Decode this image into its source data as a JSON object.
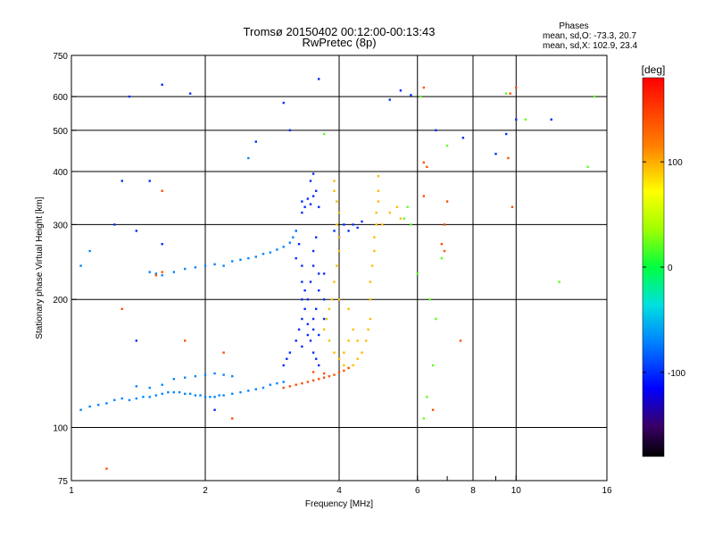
{
  "chart_data": {
    "type": "scatter",
    "title": "Tromsø 20150402 00:12:00-00:13:43",
    "subtitle": "RwPretec (8p)",
    "xlabel": "Frequency [MHz]",
    "ylabel": "Stationary phase Virtual Height [km]",
    "x_scale": "log",
    "y_scale": "log",
    "xlim": [
      1,
      16
    ],
    "ylim": [
      75,
      750
    ],
    "grid": true,
    "x_ticks": [
      1,
      2,
      4,
      6,
      8,
      10,
      16
    ],
    "x_tick_labels": [
      "1",
      "2",
      "4",
      "6",
      "8",
      "10",
      "16"
    ],
    "x_minor_ticks": [
      7,
      9
    ],
    "x_grid_lines": [
      2,
      4,
      6,
      8,
      10
    ],
    "y_ticks": [
      75,
      100,
      200,
      300,
      400,
      500,
      600,
      750
    ],
    "y_tick_labels": [
      "75",
      "100",
      "200",
      "300",
      "400",
      "500",
      "600",
      "750"
    ],
    "y_grid_lines": [
      100,
      200,
      300,
      400,
      500,
      600
    ],
    "stats": {
      "heading": "Phases",
      "line_o": "mean, sd,O: -73.3, 20.7",
      "line_x": "mean, sd,X: 102.9, 23.4"
    },
    "colorbar": {
      "label": "[deg]",
      "range": [
        -180,
        180
      ],
      "ticks": [
        100,
        0,
        -100
      ],
      "tick_labels": [
        "100",
        "0",
        "-100"
      ],
      "colormap": "rainbow"
    },
    "series": [
      {
        "mode": "O",
        "phase_deg": -100,
        "points": [
          [
            3.3,
            340
          ],
          [
            3.35,
            330
          ],
          [
            3.4,
            345
          ],
          [
            3.45,
            335
          ],
          [
            3.5,
            350
          ],
          [
            3.55,
            360
          ],
          [
            3.45,
            380
          ],
          [
            3.5,
            395
          ],
          [
            3.3,
            320
          ],
          [
            3.6,
            330
          ],
          [
            3.2,
            290
          ],
          [
            3.25,
            270
          ],
          [
            3.2,
            250
          ],
          [
            3.3,
            240
          ],
          [
            3.3,
            220
          ],
          [
            3.35,
            210
          ],
          [
            3.3,
            200
          ],
          [
            3.35,
            190
          ],
          [
            3.3,
            180
          ],
          [
            3.25,
            170
          ],
          [
            3.2,
            160
          ],
          [
            3.1,
            150
          ],
          [
            3.05,
            145
          ],
          [
            3.0,
            140
          ],
          [
            3.4,
            200
          ],
          [
            3.45,
            220
          ],
          [
            3.5,
            240
          ],
          [
            3.5,
            260
          ],
          [
            3.55,
            280
          ],
          [
            3.6,
            230
          ],
          [
            3.6,
            210
          ],
          [
            3.55,
            190
          ],
          [
            3.5,
            180
          ],
          [
            3.5,
            170
          ],
          [
            3.45,
            160
          ],
          [
            3.5,
            150
          ],
          [
            3.55,
            145
          ],
          [
            3.6,
            140
          ],
          [
            3.7,
            180
          ],
          [
            3.7,
            200
          ],
          [
            3.7,
            230
          ],
          [
            3.4,
            175
          ],
          [
            3.4,
            165
          ],
          [
            3.6,
            165
          ],
          [
            3.3,
            155
          ],
          [
            4.0,
            280
          ],
          [
            4.1,
            300
          ],
          [
            4.2,
            290
          ],
          [
            4.3,
            300
          ],
          [
            4.4,
            295
          ],
          [
            4.5,
            305
          ],
          [
            3.9,
            290
          ],
          [
            1.35,
            600
          ],
          [
            1.6,
            640
          ],
          [
            1.85,
            610
          ],
          [
            3.1,
            500
          ],
          [
            3.6,
            660
          ],
          [
            5.2,
            590
          ],
          [
            5.5,
            620
          ],
          [
            5.8,
            605
          ],
          [
            6.6,
            500
          ],
          [
            7.6,
            480
          ],
          [
            9.5,
            490
          ],
          [
            10.0,
            530
          ],
          [
            12.0,
            530
          ],
          [
            9.0,
            440
          ],
          [
            1.3,
            380
          ],
          [
            1.5,
            380
          ],
          [
            1.4,
            290
          ],
          [
            1.6,
            270
          ],
          [
            2.6,
            470
          ],
          [
            3.0,
            580
          ],
          [
            1.4,
            160
          ],
          [
            1.25,
            300
          ],
          [
            2.1,
            110
          ]
        ]
      },
      {
        "mode": "O-lower",
        "phase_deg": -70,
        "points": [
          [
            1.05,
            110
          ],
          [
            1.1,
            112
          ],
          [
            1.15,
            113
          ],
          [
            1.2,
            114
          ],
          [
            1.25,
            116
          ],
          [
            1.3,
            117
          ],
          [
            1.35,
            116
          ],
          [
            1.4,
            117
          ],
          [
            1.45,
            118
          ],
          [
            1.5,
            118
          ],
          [
            1.55,
            119
          ],
          [
            1.6,
            120
          ],
          [
            1.65,
            121
          ],
          [
            1.7,
            121
          ],
          [
            1.75,
            121
          ],
          [
            1.8,
            120
          ],
          [
            1.85,
            120
          ],
          [
            1.9,
            119
          ],
          [
            1.95,
            119
          ],
          [
            2.0,
            118
          ],
          [
            2.05,
            118
          ],
          [
            2.1,
            118
          ],
          [
            2.15,
            119
          ],
          [
            2.2,
            119
          ],
          [
            2.3,
            120
          ],
          [
            2.4,
            121
          ],
          [
            2.5,
            122
          ],
          [
            2.6,
            123
          ],
          [
            2.7,
            124
          ],
          [
            2.8,
            126
          ],
          [
            2.9,
            127
          ],
          [
            3.0,
            128
          ],
          [
            1.7,
            130
          ],
          [
            1.8,
            131
          ],
          [
            1.9,
            132
          ],
          [
            2.0,
            133
          ],
          [
            2.1,
            134
          ],
          [
            2.2,
            133
          ],
          [
            2.3,
            132
          ],
          [
            1.4,
            125
          ],
          [
            1.5,
            124
          ],
          [
            1.6,
            126
          ],
          [
            1.5,
            232
          ],
          [
            1.55,
            230
          ],
          [
            1.6,
            228
          ],
          [
            1.7,
            232
          ],
          [
            1.8,
            236
          ],
          [
            1.9,
            238
          ],
          [
            2.0,
            240
          ],
          [
            2.1,
            242
          ],
          [
            2.2,
            240
          ],
          [
            2.3,
            246
          ],
          [
            2.4,
            248
          ],
          [
            2.5,
            250
          ],
          [
            2.6,
            252
          ],
          [
            2.7,
            256
          ],
          [
            2.8,
            258
          ],
          [
            2.9,
            262
          ],
          [
            3.0,
            266
          ],
          [
            3.1,
            272
          ],
          [
            3.15,
            280
          ],
          [
            3.2,
            290
          ],
          [
            1.1,
            260
          ],
          [
            1.05,
            240
          ],
          [
            2.5,
            430
          ]
        ]
      },
      {
        "mode": "X",
        "phase_deg": 95,
        "points": [
          [
            3.9,
            380
          ],
          [
            3.9,
            360
          ],
          [
            3.95,
            340
          ],
          [
            4.0,
            320
          ],
          [
            3.95,
            300
          ],
          [
            4.0,
            280
          ],
          [
            4.0,
            260
          ],
          [
            3.95,
            240
          ],
          [
            3.9,
            220
          ],
          [
            3.85,
            200
          ],
          [
            3.8,
            190
          ],
          [
            3.75,
            180
          ],
          [
            3.7,
            170
          ],
          [
            3.8,
            160
          ],
          [
            3.9,
            150
          ],
          [
            4.0,
            145
          ],
          [
            4.1,
            140
          ],
          [
            4.2,
            138
          ],
          [
            4.3,
            140
          ],
          [
            4.4,
            145
          ],
          [
            4.5,
            150
          ],
          [
            4.6,
            160
          ],
          [
            4.65,
            170
          ],
          [
            4.7,
            180
          ],
          [
            4.7,
            200
          ],
          [
            4.7,
            220
          ],
          [
            4.75,
            240
          ],
          [
            4.8,
            260
          ],
          [
            4.8,
            280
          ],
          [
            4.85,
            300
          ],
          [
            4.85,
            320
          ],
          [
            4.9,
            340
          ],
          [
            4.9,
            360
          ],
          [
            4.9,
            390
          ],
          [
            4.4,
            160
          ],
          [
            4.3,
            170
          ],
          [
            4.2,
            160
          ],
          [
            4.1,
            150
          ],
          [
            5.0,
            300
          ],
          [
            5.2,
            320
          ],
          [
            5.4,
            330
          ],
          [
            5.5,
            310
          ],
          [
            4.0,
            200
          ],
          [
            4.2,
            190
          ]
        ]
      },
      {
        "mode": "X-lower",
        "phase_deg": 140,
        "points": [
          [
            3.0,
            124
          ],
          [
            3.1,
            125
          ],
          [
            3.2,
            126
          ],
          [
            3.3,
            127
          ],
          [
            3.4,
            128
          ],
          [
            3.5,
            129
          ],
          [
            3.6,
            130
          ],
          [
            3.7,
            131
          ],
          [
            3.8,
            132
          ],
          [
            3.9,
            133
          ],
          [
            4.0,
            135
          ],
          [
            4.1,
            136
          ],
          [
            4.2,
            138
          ],
          [
            3.5,
            135
          ],
          [
            3.7,
            134
          ],
          [
            1.6,
            232
          ],
          [
            1.55,
            228
          ],
          [
            1.6,
            360
          ],
          [
            6.2,
            420
          ],
          [
            6.3,
            410
          ],
          [
            6.2,
            350
          ],
          [
            6.8,
            270
          ],
          [
            6.9,
            300
          ],
          [
            7.0,
            340
          ],
          [
            6.9,
            260
          ],
          [
            9.8,
            330
          ],
          [
            9.6,
            430
          ],
          [
            9.7,
            610
          ],
          [
            10.0,
            630
          ],
          [
            6.2,
            630
          ],
          [
            1.3,
            190
          ],
          [
            1.8,
            160
          ],
          [
            2.2,
            150
          ],
          [
            2.3,
            105
          ],
          [
            6.5,
            110
          ],
          [
            7.5,
            160
          ],
          [
            1.2,
            80
          ]
        ]
      },
      {
        "mode": "misc",
        "phase_deg": 20,
        "points": [
          [
            5.7,
            330
          ],
          [
            5.6,
            310
          ],
          [
            5.8,
            300
          ],
          [
            6.4,
            200
          ],
          [
            6.6,
            180
          ],
          [
            6.8,
            250
          ],
          [
            6.5,
            140
          ],
          [
            6.3,
            118
          ],
          [
            6.2,
            105
          ],
          [
            14.5,
            410
          ],
          [
            15.0,
            600
          ],
          [
            12.5,
            220
          ],
          [
            9.5,
            610
          ],
          [
            6.0,
            230
          ],
          [
            7.0,
            460
          ],
          [
            10.5,
            530
          ],
          [
            6.1,
            600
          ],
          [
            3.7,
            490
          ]
        ]
      }
    ]
  }
}
